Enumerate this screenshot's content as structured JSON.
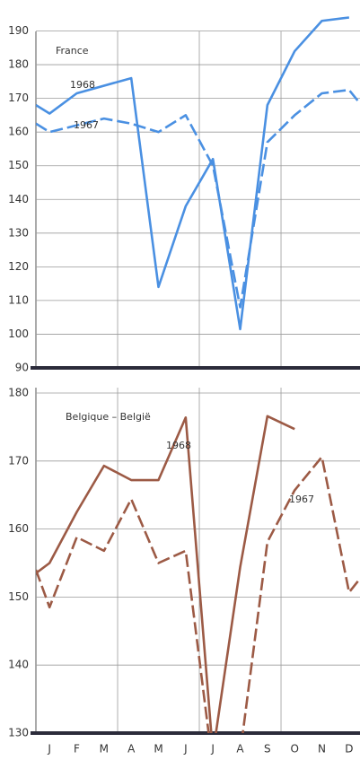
{
  "chart_data": [
    {
      "type": "line",
      "title": "France",
      "xlim": [
        0.5,
        12.4
      ],
      "ylim": [
        90,
        196
      ],
      "yticks": [
        90,
        100,
        110,
        120,
        130,
        140,
        150,
        160,
        170,
        180,
        190
      ],
      "grid": true,
      "series": [
        {
          "name": "1968",
          "color": "#4a90e2",
          "line_style": "solid",
          "x": [
            0.5,
            1,
            2,
            4,
            5,
            6,
            7,
            8,
            9,
            10,
            11,
            12
          ],
          "values": [
            168,
            165.5,
            171.5,
            176,
            114,
            138,
            152,
            101.5,
            168,
            184,
            193,
            194
          ]
        },
        {
          "name": "1967",
          "color": "#4a90e2",
          "line_style": "dashed",
          "x": [
            0.5,
            1,
            2,
            3,
            4,
            5,
            6,
            7,
            8,
            9,
            10,
            11,
            12,
            12.4
          ],
          "values": [
            162.5,
            160,
            162,
            164,
            162.5,
            160,
            165,
            150,
            108,
            157,
            165,
            171.5,
            172.5,
            168.5
          ]
        }
      ]
    },
    {
      "type": "line",
      "title": "Belgique – België",
      "xlim": [
        0.5,
        12.4
      ],
      "ylim": [
        130,
        180
      ],
      "xticks": [
        {
          "value": 1,
          "label": "J"
        },
        {
          "value": 2,
          "label": "F"
        },
        {
          "value": 3,
          "label": "M"
        },
        {
          "value": 4,
          "label": "A"
        },
        {
          "value": 5,
          "label": "M"
        },
        {
          "value": 6,
          "label": "J"
        },
        {
          "value": 7,
          "label": "J"
        },
        {
          "value": 8,
          "label": "A"
        },
        {
          "value": 9,
          "label": "S"
        },
        {
          "value": 10,
          "label": "O"
        },
        {
          "value": 11,
          "label": "N"
        },
        {
          "value": 12,
          "label": "D"
        }
      ],
      "yticks": [
        130,
        140,
        150,
        160,
        170,
        180
      ],
      "grid": true,
      "series": [
        {
          "name": "1968",
          "color": "#9c5a45",
          "line_style": "solid",
          "x": [
            0.5,
            1,
            2,
            3,
            4,
            5,
            6,
            7,
            8,
            9,
            10
          ],
          "values": [
            153.5,
            155,
            162.5,
            169.3,
            167.2,
            167.2,
            176.4,
            127,
            154.4,
            176.6,
            174.7
          ]
        },
        {
          "name": "1967",
          "color": "#9c5a45",
          "line_style": "dashed",
          "x": [
            0.5,
            1,
            2,
            3,
            4,
            5,
            6,
            7,
            8,
            9,
            10,
            11,
            12,
            12.4
          ],
          "values": [
            154,
            148.5,
            158.8,
            156.8,
            164.4,
            155,
            156.8,
            125,
            127,
            158.1,
            165.7,
            170.6,
            150.7,
            152.7
          ]
        }
      ]
    }
  ]
}
